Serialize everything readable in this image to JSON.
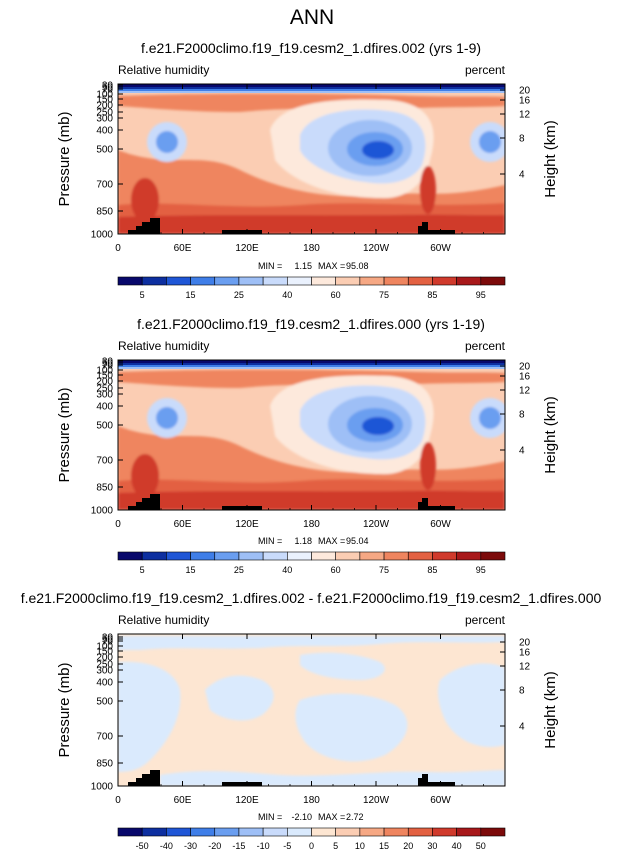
{
  "page_title": "ANN",
  "colors": {
    "abs_scale": [
      "#08086b",
      "#0d2fa0",
      "#1f56d6",
      "#3f7ee8",
      "#6a9ef0",
      "#9ebff6",
      "#c9dbfb",
      "#eaf1fd",
      "#fde9dc",
      "#fbcdb3",
      "#f6a884",
      "#ef855f",
      "#e36142",
      "#d03a2c",
      "#a8181a",
      "#7c0a0a"
    ],
    "diff_scale": [
      "#08086b",
      "#0d2fa0",
      "#1f56d6",
      "#3f7ee8",
      "#6a9ef0",
      "#9ebff6",
      "#c9dbfb",
      "#daeafd",
      "#fde6d2",
      "#fbcdb3",
      "#f6a884",
      "#ef855f",
      "#e36142",
      "#d03a2c",
      "#a8181a",
      "#7c0a0a"
    ],
    "topography": "#000000"
  },
  "chart_data": [
    {
      "type": "heatmap",
      "title": "f.e21.F2000climo.f19_f19.cesm2_1.dfires.002 (yrs 1-9)",
      "left_subtitle": "Relative humidity",
      "right_subtitle": "percent",
      "ylabel": "Pressure (mb)",
      "ylabel_right": "Height (km)",
      "x_ticks": [
        "0",
        "60E",
        "120E",
        "180",
        "120W",
        "60W"
      ],
      "y_ticks": [
        "1000",
        "850",
        "700",
        "500",
        "400",
        "300",
        "250",
        "200",
        "150",
        "100",
        "70",
        "50",
        "30"
      ],
      "y_ticks_right": [
        "4",
        "8",
        "12",
        "16",
        "20"
      ],
      "stats": {
        "min_label": "MIN =",
        "min": "1.15",
        "max_label": "MAX =",
        "max": "95.08"
      },
      "colorbar_labels": [
        "5",
        "15",
        "25",
        "40",
        "60",
        "75",
        "85",
        "95"
      ],
      "scale": "abs"
    },
    {
      "type": "heatmap",
      "title": "f.e21.F2000climo.f19_f19.cesm2_1.dfires.000 (yrs 1-19)",
      "left_subtitle": "Relative humidity",
      "right_subtitle": "percent",
      "ylabel": "Pressure (mb)",
      "ylabel_right": "Height (km)",
      "x_ticks": [
        "0",
        "60E",
        "120E",
        "180",
        "120W",
        "60W"
      ],
      "y_ticks": [
        "1000",
        "850",
        "700",
        "500",
        "400",
        "300",
        "250",
        "200",
        "150",
        "100",
        "70",
        "50",
        "30"
      ],
      "y_ticks_right": [
        "4",
        "8",
        "12",
        "16",
        "20"
      ],
      "stats": {
        "min_label": "MIN =",
        "min": "1.18",
        "max_label": "MAX =",
        "max": "95.04"
      },
      "colorbar_labels": [
        "5",
        "15",
        "25",
        "40",
        "60",
        "75",
        "85",
        "95"
      ],
      "scale": "abs"
    },
    {
      "type": "heatmap",
      "title": "f.e21.F2000climo.f19_f19.cesm2_1.dfires.002 - f.e21.F2000climo.f19_f19.cesm2_1.dfires.000",
      "left_subtitle": "Relative humidity",
      "right_subtitle": "percent",
      "ylabel": "Pressure (mb)",
      "ylabel_right": "Height (km)",
      "x_ticks": [
        "0",
        "60E",
        "120E",
        "180",
        "120W",
        "60W"
      ],
      "y_ticks": [
        "1000",
        "850",
        "700",
        "500",
        "400",
        "300",
        "250",
        "200",
        "150",
        "100",
        "70",
        "50",
        "30"
      ],
      "y_ticks_right": [
        "4",
        "8",
        "12",
        "16",
        "20"
      ],
      "stats": {
        "min_label": "MIN =",
        "min": "-2.10",
        "max_label": "MAX =",
        "max": "2.72"
      },
      "colorbar_labels": [
        "-50",
        "-40",
        "-30",
        "-20",
        "-15",
        "-10",
        "-5",
        "0",
        "5",
        "10",
        "15",
        "20",
        "30",
        "40",
        "50"
      ],
      "scale": "diff"
    }
  ]
}
